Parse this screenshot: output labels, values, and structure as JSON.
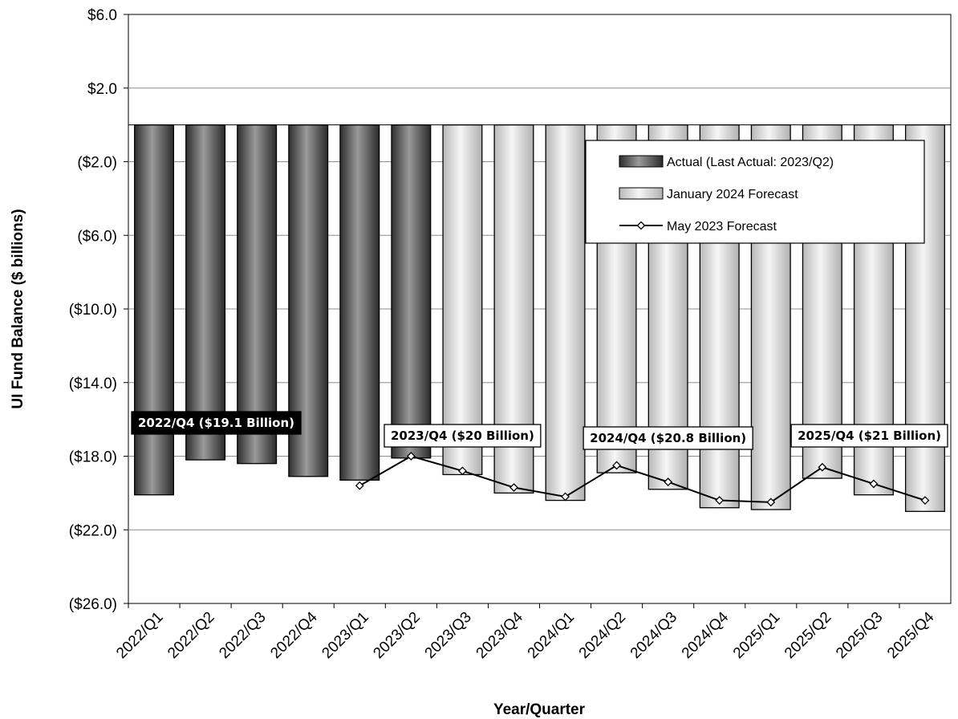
{
  "chart_data": {
    "type": "bar",
    "title": "",
    "xlabel": "Year/Quarter",
    "ylabel": "UI Fund Balance ($ billions)",
    "ylim": [
      -26,
      6
    ],
    "yticks": [
      6,
      2,
      -2,
      -6,
      -10,
      -14,
      -18,
      -22,
      -26
    ],
    "ytick_labels": [
      "$6.0",
      "$2.0",
      "($2.0)",
      "($6.0)",
      "($10.0)",
      "($14.0)",
      "($18.0)",
      "($22.0)",
      "($26.0)"
    ],
    "grid": true,
    "categories": [
      "2022/Q1",
      "2022/Q2",
      "2022/Q3",
      "2022/Q4",
      "2023/Q1",
      "2023/Q2",
      "2023/Q3",
      "2023/Q4",
      "2024/Q1",
      "2024/Q2",
      "2024/Q3",
      "2024/Q4",
      "2025/Q1",
      "2025/Q2",
      "2025/Q3",
      "2025/Q4"
    ],
    "series": [
      {
        "name": "Actual (Last Actual: 2023/Q2)",
        "kind": "bar",
        "color": "#4a4a4a",
        "values": [
          -20.1,
          -18.2,
          -18.4,
          -19.1,
          -19.3,
          -18.1,
          null,
          null,
          null,
          null,
          null,
          null,
          null,
          null,
          null,
          null
        ]
      },
      {
        "name": "January 2024 Forecast",
        "kind": "bar",
        "color": "#d6d6d6",
        "values": [
          null,
          null,
          null,
          null,
          null,
          null,
          -19.0,
          -20.0,
          -20.4,
          -18.9,
          -19.8,
          -20.8,
          -20.9,
          -19.2,
          -20.1,
          -21.0
        ]
      },
      {
        "name": "May 2023 Forecast",
        "kind": "line",
        "color": "#000000",
        "values": [
          null,
          null,
          null,
          null,
          -19.6,
          -18.0,
          -18.8,
          -19.7,
          -20.2,
          -18.5,
          -19.4,
          -20.4,
          -20.5,
          -18.6,
          -19.5,
          -20.4
        ]
      }
    ],
    "legend": {
      "placement": "top-right"
    },
    "annotations": [
      {
        "text": "2022/Q4 ($19.1 Billion)",
        "category": "2022/Q2",
        "style": "dark"
      },
      {
        "text": "2023/Q4 ($20 Billion)",
        "category": "2023/Q3",
        "style": "light"
      },
      {
        "text": "2024/Q4 ($20.8 Billion)",
        "category": "2024/Q3",
        "style": "light"
      },
      {
        "text": "2025/Q4 ($21 Billion)",
        "category": "2025/Q3",
        "style": "light"
      }
    ]
  }
}
